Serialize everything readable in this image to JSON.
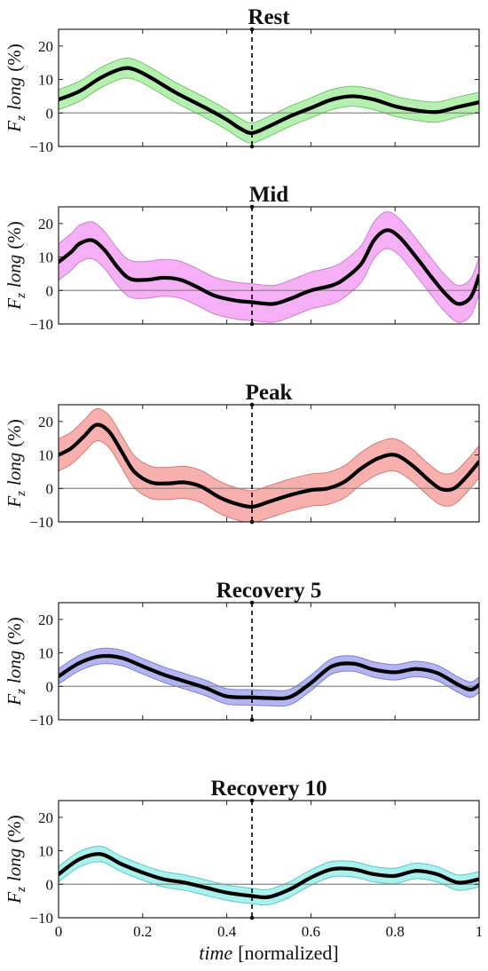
{
  "chart_data": [
    {
      "type": "line",
      "title": "Rest",
      "ylabel": {
        "symbol": "F",
        "subscript": "z",
        "word": "long",
        "unit": "(%)"
      },
      "ylim": [
        -10,
        25
      ],
      "yticks": [
        -10,
        0,
        10,
        20
      ],
      "xlim": [
        0,
        1
      ],
      "band_color": "#b6f0b0",
      "band_edge": "#74c46c",
      "vline_x": 0.46,
      "x": [
        0,
        0.05,
        0.1,
        0.15,
        0.18,
        0.22,
        0.28,
        0.35,
        0.4,
        0.43,
        0.46,
        0.5,
        0.55,
        0.6,
        0.65,
        0.7,
        0.75,
        0.8,
        0.85,
        0.9,
        0.95,
        1.0
      ],
      "values": [
        4.0,
        6.5,
        10.5,
        13.2,
        13.0,
        10.5,
        6.0,
        1.5,
        -2.0,
        -4.5,
        -6.0,
        -4.0,
        -1.0,
        1.5,
        4.0,
        5.0,
        4.0,
        2.0,
        0.8,
        0.3,
        1.8,
        3.2
      ],
      "band_halfwidth": 3.0
    },
    {
      "type": "line",
      "title": "Mid",
      "ylabel": {
        "symbol": "F",
        "subscript": "z",
        "word": "long",
        "unit": "(%)"
      },
      "ylim": [
        -10,
        25
      ],
      "yticks": [
        -10,
        0,
        10,
        20
      ],
      "xlim": [
        0,
        1
      ],
      "band_color": "#f5b0f5",
      "band_edge": "#cc7fcc",
      "vline_x": 0.46,
      "x": [
        0,
        0.03,
        0.05,
        0.08,
        0.11,
        0.14,
        0.17,
        0.21,
        0.25,
        0.29,
        0.33,
        0.37,
        0.42,
        0.46,
        0.51,
        0.55,
        0.6,
        0.65,
        0.68,
        0.72,
        0.75,
        0.78,
        0.81,
        0.85,
        0.89,
        0.92,
        0.95,
        0.98,
        1.0
      ],
      "values": [
        8.5,
        11.5,
        14.0,
        15.0,
        12.0,
        7.0,
        3.5,
        3.2,
        3.8,
        3.2,
        1.0,
        -1.5,
        -3.0,
        -3.5,
        -4.0,
        -2.5,
        0.0,
        1.5,
        3.5,
        8.0,
        15.0,
        18.0,
        16.0,
        10.0,
        3.5,
        -1.0,
        -4.0,
        -2.0,
        4.5
      ],
      "band_halfwidth": 5.5
    },
    {
      "type": "line",
      "title": "Peak",
      "ylabel": {
        "symbol": "F",
        "subscript": "z",
        "word": "long",
        "unit": "(%)"
      },
      "ylim": [
        -10,
        25
      ],
      "yticks": [
        -10,
        0,
        10,
        20
      ],
      "xlim": [
        0,
        1
      ],
      "band_color": "#f7b0ae",
      "band_edge": "#d07c7a",
      "vline_x": 0.46,
      "x": [
        0,
        0.03,
        0.06,
        0.09,
        0.12,
        0.15,
        0.18,
        0.22,
        0.26,
        0.3,
        0.34,
        0.38,
        0.42,
        0.46,
        0.5,
        0.55,
        0.6,
        0.64,
        0.68,
        0.72,
        0.76,
        0.8,
        0.84,
        0.88,
        0.91,
        0.94,
        0.97,
        1.0
      ],
      "values": [
        10.0,
        12.0,
        15.5,
        19.0,
        17.0,
        11.0,
        5.0,
        1.8,
        1.5,
        1.8,
        0.5,
        -2.5,
        -4.5,
        -5.5,
        -4.0,
        -2.0,
        -0.5,
        0.0,
        2.0,
        6.0,
        9.0,
        10.0,
        7.0,
        2.5,
        -0.2,
        0.0,
        3.5,
        8.0
      ],
      "band_halfwidth": 4.8
    },
    {
      "type": "line",
      "title": "Recovery 5",
      "ylabel": {
        "symbol": "F",
        "subscript": "z",
        "word": "long",
        "unit": "(%)"
      },
      "ylim": [
        -10,
        25
      ],
      "yticks": [
        -10,
        0,
        10,
        20
      ],
      "xlim": [
        0,
        1
      ],
      "band_color": "#b3b5f2",
      "band_edge": "#7d80cf",
      "vline_x": 0.46,
      "x": [
        0,
        0.05,
        0.1,
        0.15,
        0.2,
        0.25,
        0.3,
        0.35,
        0.4,
        0.46,
        0.5,
        0.55,
        0.6,
        0.65,
        0.7,
        0.75,
        0.8,
        0.85,
        0.9,
        0.95,
        0.98,
        1.0
      ],
      "values": [
        3.0,
        7.0,
        9.0,
        8.5,
        6.0,
        3.5,
        1.5,
        -0.5,
        -3.0,
        -3.3,
        -3.5,
        -3.2,
        1.0,
        6.0,
        6.8,
        5.0,
        4.2,
        5.2,
        4.0,
        0.5,
        -1.0,
        0.5
      ],
      "band_halfwidth": 2.3
    },
    {
      "type": "line",
      "title": "Recovery 10",
      "ylabel": {
        "symbol": "F",
        "subscript": "z",
        "word": "long",
        "unit": "(%)"
      },
      "ylim": [
        -10,
        25
      ],
      "yticks": [
        -10,
        0,
        10,
        20
      ],
      "xlim": [
        0,
        1
      ],
      "xticks": [
        0,
        0.2,
        0.4,
        0.6,
        0.8,
        1
      ],
      "xlabel": {
        "italic": "time",
        "rest": "[normalized]"
      },
      "band_color": "#a9f2ee",
      "band_edge": "#62c6c1",
      "vline_x": 0.46,
      "x": [
        0,
        0.05,
        0.1,
        0.15,
        0.2,
        0.25,
        0.3,
        0.35,
        0.4,
        0.46,
        0.5,
        0.55,
        0.6,
        0.65,
        0.7,
        0.75,
        0.8,
        0.85,
        0.9,
        0.95,
        1.0
      ],
      "values": [
        3.0,
        7.5,
        9.0,
        6.0,
        3.5,
        1.5,
        0.5,
        -1.0,
        -2.5,
        -3.5,
        -3.8,
        -1.5,
        2.0,
        4.5,
        4.5,
        3.0,
        2.5,
        4.0,
        3.0,
        0.5,
        1.5
      ],
      "band_halfwidth": 2.3
    }
  ]
}
